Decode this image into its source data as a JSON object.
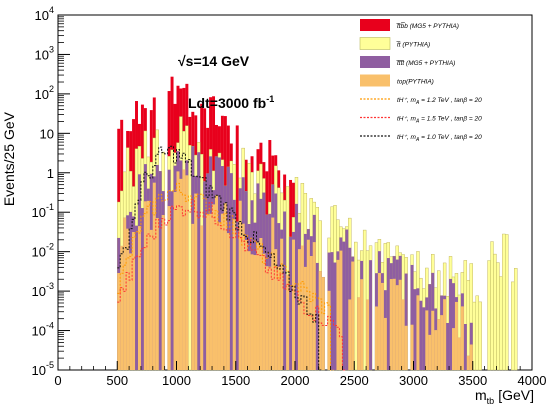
{
  "chart_data": {
    "type": "bar",
    "xlabel": "m",
    "xlabel_sub": "tb",
    "xlabel_unit": "[GeV]",
    "ylabel": "Events/25 GeV",
    "yscale": "log",
    "xlim": [
      0,
      4000
    ],
    "ylim": [
      1e-05,
      10000.0
    ],
    "x_ticks": [
      "0",
      "500",
      "1000",
      "1500",
      "2000",
      "2500",
      "3000",
      "3500",
      "4000"
    ],
    "y_ticks": [
      {
        "base": "10",
        "exp": "-5"
      },
      {
        "base": "10",
        "exp": "-4"
      },
      {
        "base": "10",
        "exp": "-3"
      },
      {
        "base": "10",
        "exp": "-2"
      },
      {
        "base": "10",
        "exp": "-1"
      },
      {
        "base": "1",
        "exp": ""
      },
      {
        "base": "10",
        "exp": ""
      },
      {
        "base": "10",
        "exp": "2"
      },
      {
        "base": "10",
        "exp": "3"
      },
      {
        "base": "10",
        "exp": "4"
      }
    ],
    "annotations": {
      "energy": "√s=14 GeV",
      "lumi": "Ldt=3000 fb",
      "lumi_exp": "-1"
    },
    "legend_position": "top-right",
    "stack_colors": {
      "ttbb": "#e8001c",
      "tt": "#ffff99",
      "tttt": "#8f5ea1",
      "top": "#f9c06b"
    },
    "series": [
      {
        "name": "t̅tb̅b  (MG5 + PYTHIA)",
        "key": "ttbb",
        "kind": "stack",
        "x_range": [
          500,
          2000
        ],
        "peak_x": 960,
        "peak_y": 150,
        "tail": [
          [
            500,
            12
          ],
          [
            700,
            60
          ],
          [
            1000,
            150
          ],
          [
            1200,
            60
          ],
          [
            1400,
            20
          ],
          [
            1600,
            8
          ],
          [
            1800,
            3
          ],
          [
            2000,
            1
          ]
        ]
      },
      {
        "name": "t̅t  (PYTHIA)",
        "key": "tt",
        "kind": "stack",
        "x_range": [
          450,
          3950
        ],
        "peak_x": 1000,
        "peak_y": 8,
        "tail": [
          [
            500,
            0.5
          ],
          [
            800,
            5
          ],
          [
            1000,
            8
          ],
          [
            1300,
            3
          ],
          [
            1600,
            1
          ],
          [
            2000,
            0.15
          ],
          [
            2500,
            0.02
          ],
          [
            3000,
            0.004
          ],
          [
            3500,
            0.002
          ],
          [
            3900,
            0.01
          ]
        ]
      },
      {
        "name": "t̅tt̅t  (MG5 + PYTHIA)",
        "key": "tttt",
        "kind": "stack",
        "x_range": [
          450,
          3700
        ],
        "peak_x": 1000,
        "peak_y": 1.5,
        "tail": [
          [
            500,
            0.02
          ],
          [
            800,
            0.8
          ],
          [
            1000,
            1.5
          ],
          [
            1300,
            0.7
          ],
          [
            1600,
            0.2
          ],
          [
            2000,
            0.05
          ],
          [
            2500,
            0.006
          ],
          [
            3000,
            0.001
          ],
          [
            3500,
            0.0003
          ]
        ]
      },
      {
        "name": "top(PYTHIA)",
        "key": "top",
        "kind": "stack",
        "x_range": [
          450,
          3950
        ],
        "peak_x": 1050,
        "peak_y": 0.3,
        "tail": [
          [
            500,
            0.01
          ],
          [
            800,
            0.15
          ],
          [
            1000,
            0.3
          ],
          [
            1200,
            0.2
          ],
          [
            1500,
            0.05
          ],
          [
            2000,
            0.01
          ],
          [
            2500,
            0.002
          ],
          [
            3000,
            0.0005
          ],
          [
            3500,
            0.0001
          ]
        ]
      },
      {
        "name": "tH⁺,   m",
        "name_sub": "A",
        "name_rest": " = 1.2  TeV   ,  tanβ = 20",
        "key": "H12",
        "kind": "line",
        "color": "#ff9900",
        "points": [
          [
            500,
            0.001
          ],
          [
            700,
            0.05
          ],
          [
            900,
            0.3
          ],
          [
            1000,
            0.35
          ],
          [
            1100,
            0.3
          ],
          [
            1300,
            0.12
          ],
          [
            1500,
            0.04
          ],
          [
            1700,
            0.01
          ],
          [
            1900,
            0.003
          ],
          [
            2100,
            0.0009
          ],
          [
            2300,
            0.0003
          ]
        ]
      },
      {
        "name": "tH⁺,   m",
        "name_sub": "A",
        "name_rest": " = 1.5  TeV   ,  tanβ = 20",
        "key": "H15",
        "kind": "line",
        "color": "#ff3333",
        "points": [
          [
            500,
            0.0005
          ],
          [
            700,
            0.01
          ],
          [
            900,
            0.08
          ],
          [
            1100,
            0.15
          ],
          [
            1300,
            0.1
          ],
          [
            1500,
            0.03
          ],
          [
            1700,
            0.006
          ],
          [
            1900,
            0.0015
          ],
          [
            2100,
            0.0004
          ],
          [
            2400,
            0.0001
          ]
        ]
      },
      {
        "name": "tH⁺,   m",
        "name_sub": "A",
        "name_rest": " = 1.0  TeV   ,  tanβ = 20",
        "key": "H10",
        "kind": "line",
        "color": "#111111",
        "points": [
          [
            500,
            0.002
          ],
          [
            700,
            0.4
          ],
          [
            850,
            2.5
          ],
          [
            950,
            3.5
          ],
          [
            1050,
            2.5
          ],
          [
            1200,
            0.6
          ],
          [
            1400,
            0.15
          ],
          [
            1600,
            0.03
          ],
          [
            1800,
            0.006
          ],
          [
            2000,
            0.001
          ],
          [
            2200,
            0.0002
          ]
        ]
      }
    ]
  }
}
